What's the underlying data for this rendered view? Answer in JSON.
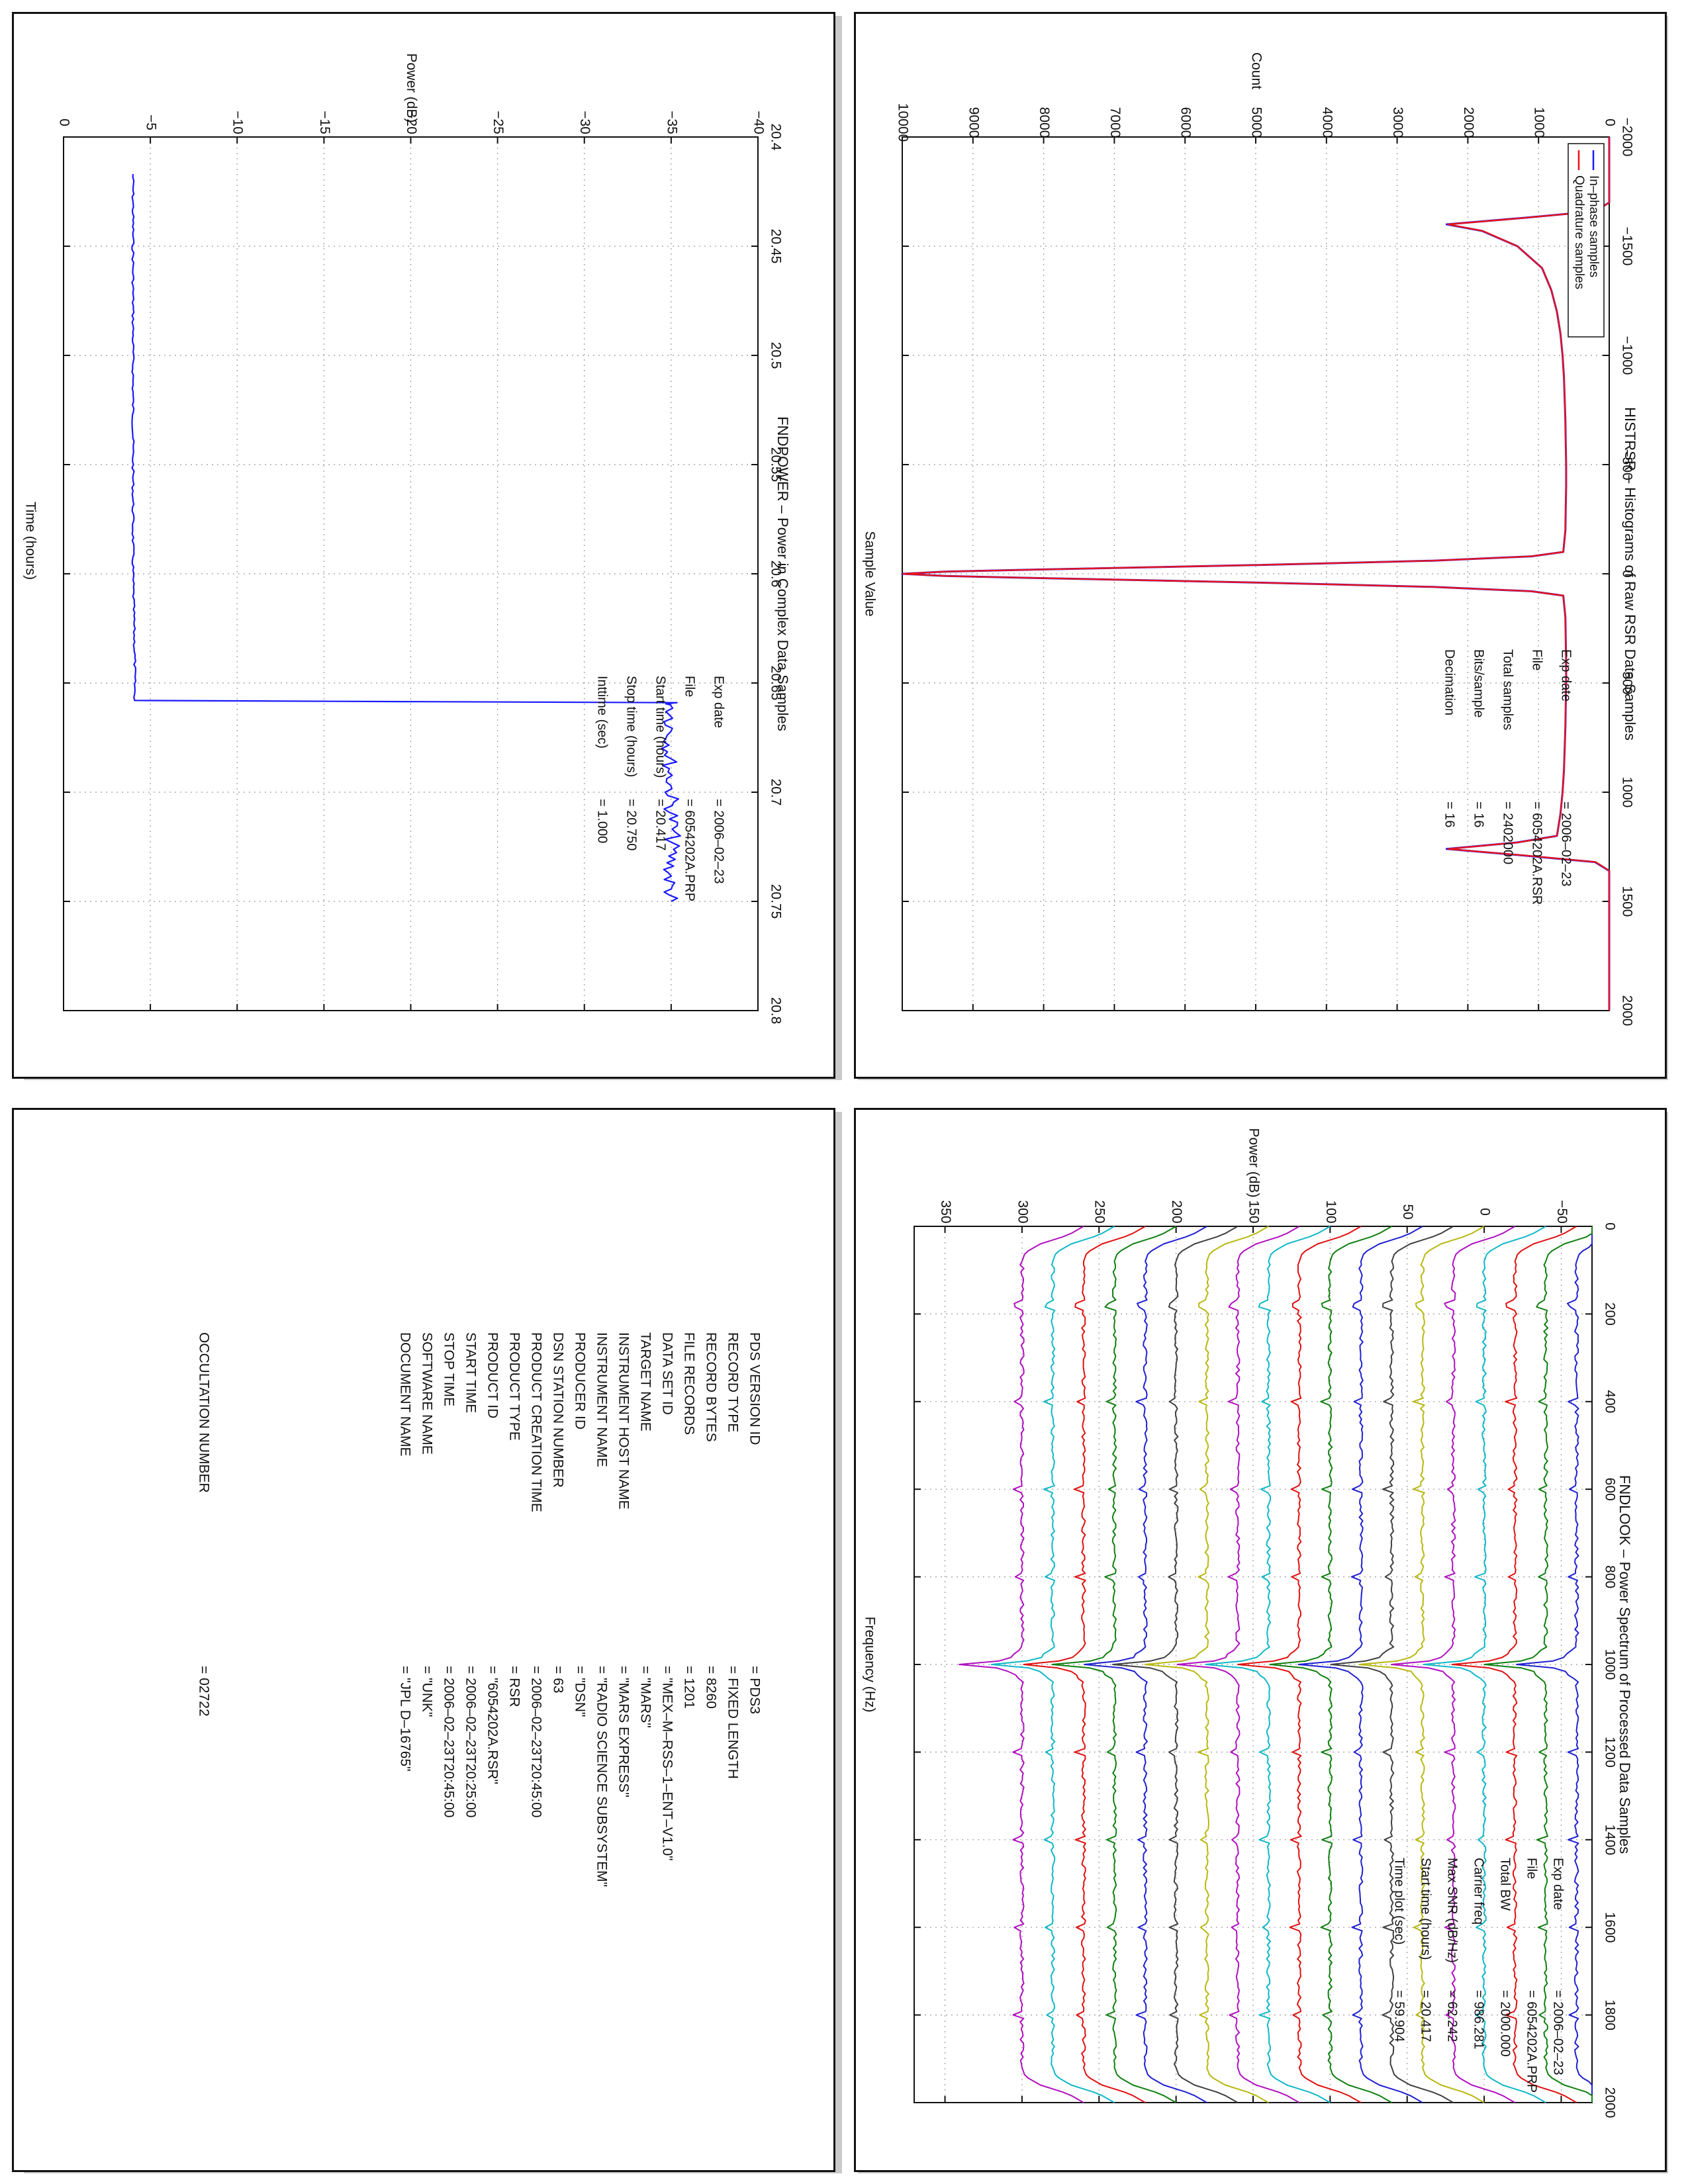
{
  "chart_data": [
    {
      "id": "histrsr",
      "type": "line",
      "title": "HISTRSR – Histograms of Raw RSR Data Samples",
      "xlabel": "Sample Value",
      "ylabel": "Count",
      "xlim": [
        -2000,
        2000
      ],
      "ylim": [
        0,
        10000
      ],
      "x_ticks": [
        -2000,
        -1500,
        -1000,
        -500,
        0,
        500,
        1000,
        1500,
        2000
      ],
      "y_ticks": [
        0,
        1000,
        2000,
        3000,
        4000,
        5000,
        6000,
        7000,
        8000,
        9000,
        10000
      ],
      "tick_labels_x": [
        "−2000",
        "−1500",
        "−1000",
        "−500",
        "0",
        "500",
        "1000",
        "1500",
        "2000"
      ],
      "tick_labels_y": [
        "0",
        "1000",
        "2000",
        "3000",
        "4000",
        "5000",
        "6000",
        "7000",
        "8000",
        "9000",
        "10000"
      ],
      "grid": true,
      "legend_position": "top-right",
      "series": [
        {
          "name": "In–phase samples",
          "color": "#1a1aff",
          "x": [
            -2000,
            -1700,
            -1660,
            -1630,
            -1600,
            -1570,
            -1500,
            -1400,
            -1300,
            -1200,
            -1100,
            -1000,
            -900,
            -800,
            -700,
            -600,
            -500,
            -400,
            -300,
            -200,
            -100,
            -80,
            -60,
            -40,
            -20,
            -10,
            0,
            10,
            20,
            40,
            60,
            80,
            100,
            200,
            300,
            400,
            500,
            600,
            700,
            800,
            900,
            1000,
            1100,
            1200,
            1230,
            1260,
            1290,
            1320,
            1360,
            2000
          ],
          "y": [
            0,
            0,
            200,
            1200,
            2300,
            1800,
            1300,
            950,
            820,
            740,
            690,
            660,
            640,
            630,
            620,
            615,
            610,
            610,
            615,
            620,
            650,
            1100,
            2500,
            5000,
            8000,
            9400,
            10000,
            9400,
            8000,
            5000,
            2500,
            1100,
            650,
            620,
            615,
            610,
            610,
            615,
            620,
            630,
            640,
            660,
            690,
            740,
            1300,
            2300,
            1200,
            200,
            0,
            0
          ]
        },
        {
          "name": "Quadrature samples",
          "color": "#e8141b",
          "x": [
            -2000,
            -1700,
            -1660,
            -1630,
            -1600,
            -1570,
            -1500,
            -1400,
            -1300,
            -1200,
            -1100,
            -1000,
            -900,
            -800,
            -700,
            -600,
            -500,
            -400,
            -300,
            -200,
            -100,
            -80,
            -60,
            -40,
            -20,
            -10,
            0,
            10,
            20,
            40,
            60,
            80,
            100,
            200,
            300,
            400,
            500,
            600,
            700,
            800,
            900,
            1000,
            1100,
            1200,
            1230,
            1260,
            1290,
            1320,
            1360,
            2000
          ],
          "y": [
            0,
            0,
            190,
            1180,
            2280,
            1790,
            1300,
            950,
            820,
            740,
            690,
            660,
            640,
            630,
            620,
            615,
            610,
            610,
            615,
            620,
            650,
            1100,
            2500,
            5000,
            8000,
            9400,
            9990,
            9400,
            8000,
            5000,
            2500,
            1100,
            650,
            620,
            615,
            610,
            610,
            615,
            620,
            630,
            640,
            660,
            690,
            740,
            1290,
            2280,
            1180,
            190,
            0,
            0
          ]
        }
      ],
      "annotations": [
        {
          "label": "Exp date",
          "value": "= 2006–02–23"
        },
        {
          "label": "File",
          "value": "= 6054202A.RSR"
        },
        {
          "label": "Total samples",
          "value": "= 2402000"
        },
        {
          "label": "Bits/sample",
          "value": "= 16"
        },
        {
          "label": "Decimation",
          "value": "= 16"
        }
      ]
    },
    {
      "id": "fndpower",
      "type": "line",
      "title": "FNDPOWER – Power in Complex Data Samples",
      "xlabel": "Time (hours)",
      "ylabel": "Power (dB)",
      "xlim": [
        20.4,
        20.8
      ],
      "ylim": [
        -40,
        0
      ],
      "x_ticks": [
        20.4,
        20.45,
        20.5,
        20.55,
        20.6,
        20.65,
        20.7,
        20.75,
        20.8
      ],
      "y_ticks": [
        -40,
        -35,
        -30,
        -25,
        -20,
        -15,
        -10,
        -5,
        0
      ],
      "tick_labels_x": [
        "20.4",
        "20.45",
        "20.5",
        "20.55",
        "20.6",
        "20.65",
        "20.7",
        "20.75",
        "20.8"
      ],
      "tick_labels_y": [
        "−40",
        "−35",
        "−30",
        "−25",
        "−20",
        "−15",
        "−10",
        "−5",
        "0"
      ],
      "grid": true,
      "series": [
        {
          "color": "#1a1aff",
          "x": [
            20.417,
            20.45,
            20.5,
            20.55,
            20.6,
            20.64,
            20.658,
            20.659,
            20.66,
            20.68,
            20.7,
            20.72,
            20.74,
            20.75
          ],
          "y": [
            -4.0,
            -4.0,
            -4.0,
            -4.0,
            -4.0,
            -4.1,
            -4.1,
            -35.0,
            -35.1,
            -34.9,
            -35.0,
            -35.1,
            -34.9,
            -35.0
          ]
        }
      ],
      "annotations": [
        {
          "label": "Exp date",
          "value": "= 2006–02–23"
        },
        {
          "label": "File",
          "value": "= 6054202A.PRP"
        },
        {
          "label": "Start time (hours)",
          "value": "= 20.417"
        },
        {
          "label": "Stop time (hours)",
          "value": "= 20.750"
        },
        {
          "label": "Inttime (sec)",
          "value": "= 1.000"
        }
      ]
    },
    {
      "id": "fndlook",
      "type": "line",
      "title": "FNDLOOK – Power Spectrum of Processed Data Samples",
      "xlabel": "Frequency (Hz)",
      "ylabel": "Power (dB)",
      "xlim": [
        0,
        2000
      ],
      "ylim": [
        -70,
        370
      ],
      "x_ticks": [
        0,
        200,
        400,
        600,
        800,
        1000,
        1200,
        1400,
        1600,
        1800,
        2000
      ],
      "y_ticks": [
        -50,
        0,
        50,
        100,
        150,
        200,
        250,
        300,
        350
      ],
      "tick_labels_x": [
        "0",
        "200",
        "400",
        "600",
        "800",
        "1000",
        "1200",
        "1400",
        "1600",
        "1800",
        "2000"
      ],
      "tick_labels_y": [
        "−50",
        "0",
        "50",
        "100",
        "150",
        "200",
        "250",
        "300",
        "350"
      ],
      "grid": true,
      "series_colors": [
        "#2020d0",
        "#108010",
        "#e01010",
        "#10b8c8",
        "#b010c0",
        "#b8b810",
        "#404040"
      ],
      "trace_baselines": [
        -60,
        -40,
        -20,
        0,
        20,
        40,
        60,
        80,
        100,
        120,
        140,
        160,
        180,
        200,
        220,
        240,
        260,
        280,
        300
      ],
      "trace_shape": {
        "freq": [
          0,
          20,
          40,
          60,
          80,
          200,
          400,
          600,
          800,
          960,
          990,
          1000,
          1010,
          1040,
          1200,
          1400,
          1600,
          1800,
          1920,
          1940,
          1960,
          1980,
          2000
        ],
        "rel_power": [
          -40,
          -30,
          -12,
          -2,
          0,
          0,
          0,
          0,
          0,
          0,
          10,
          40,
          10,
          0,
          0,
          0,
          0,
          0,
          0,
          -2,
          -12,
          -30,
          -40
        ]
      },
      "annotations": [
        {
          "label": "Exp date",
          "value": "= 2006–02–23"
        },
        {
          "label": "File",
          "value": "= 6054202A.PRP"
        },
        {
          "label": "Total BW",
          "value": "= 2000.000"
        },
        {
          "label": "Carrier freq",
          "value": "= 986.281"
        },
        {
          "label": "Max SNR (dB/Hz)",
          "value": "= 62.242"
        },
        {
          "label": "Start time (hours)",
          "value": "= 20.417"
        },
        {
          "label": "Time plot (sec)",
          "value": "= 59.904"
        }
      ]
    }
  ],
  "label_table": [
    {
      "key": "PDS VERSION ID",
      "value": "= PDS3"
    },
    {
      "key": "RECORD TYPE",
      "value": "= FIXED LENGTH"
    },
    {
      "key": "RECORD BYTES",
      "value": "= 8260"
    },
    {
      "key": "FILE RECORDS",
      "value": "= 1201"
    },
    {
      "key": "DATA SET ID",
      "value": "= \"MEX–M–RSS–1–ENT–V1.0\""
    },
    {
      "key": "TARGET NAME",
      "value": "= \"MARS\""
    },
    {
      "key": "INSTRUMENT HOST NAME",
      "value": "= \"MARS EXPRESS\""
    },
    {
      "key": "INSTRUMENT NAME",
      "value": "= \"RADIO SCIENCE SUBSYSTEM\""
    },
    {
      "key": "PRODUCER ID",
      "value": "= \"DSN\""
    },
    {
      "key": "DSN STATION NUMBER",
      "value": "= 63"
    },
    {
      "key": "PRODUCT CREATION TIME",
      "value": "= 2006–02–23T20:45:00"
    },
    {
      "key": "PRODUCT TYPE",
      "value": "= RSR"
    },
    {
      "key": "PRODUCT ID",
      "value": "= \"6054202A.RSR\""
    },
    {
      "key": "START TIME",
      "value": "= 2006–02–23T20:25:00"
    },
    {
      "key": "STOP TIME",
      "value": "= 2006–02–23T20:45:00"
    },
    {
      "key": "SOFTWARE NAME",
      "value": "= \"UNK\""
    },
    {
      "key": "DOCUMENT NAME",
      "value": "= \"JPL D–16765\""
    },
    {
      "key": "OCCULTATION NUMBER",
      "value": "= 02722"
    }
  ]
}
